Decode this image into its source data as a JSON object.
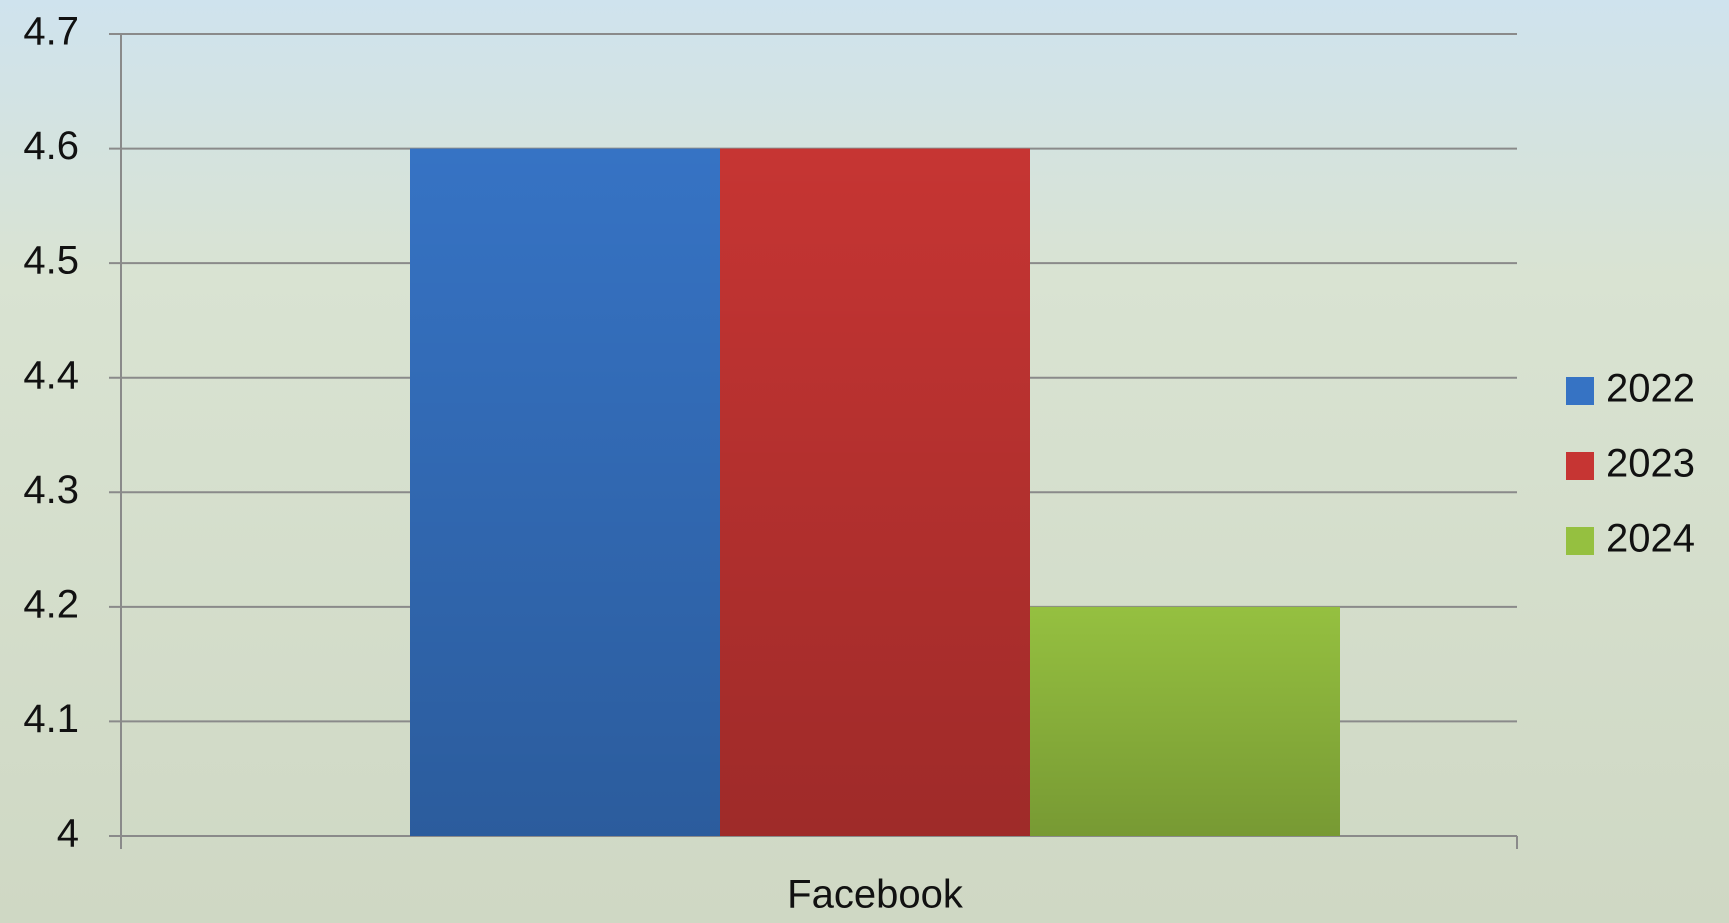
{
  "chart_data": {
    "type": "bar",
    "categories": [
      "Facebook"
    ],
    "series": [
      {
        "name": "2022",
        "color": "#3673c4",
        "values": [
          4.6
        ]
      },
      {
        "name": "2023",
        "color": "#c63533",
        "values": [
          4.6
        ]
      },
      {
        "name": "2024",
        "color": "#95c040",
        "values": [
          4.2
        ]
      }
    ],
    "ylim": [
      4,
      4.7
    ],
    "yticks": [
      4,
      4.1,
      4.2,
      4.3,
      4.4,
      4.5,
      4.6,
      4.7
    ],
    "grid": true,
    "legend": "right"
  }
}
